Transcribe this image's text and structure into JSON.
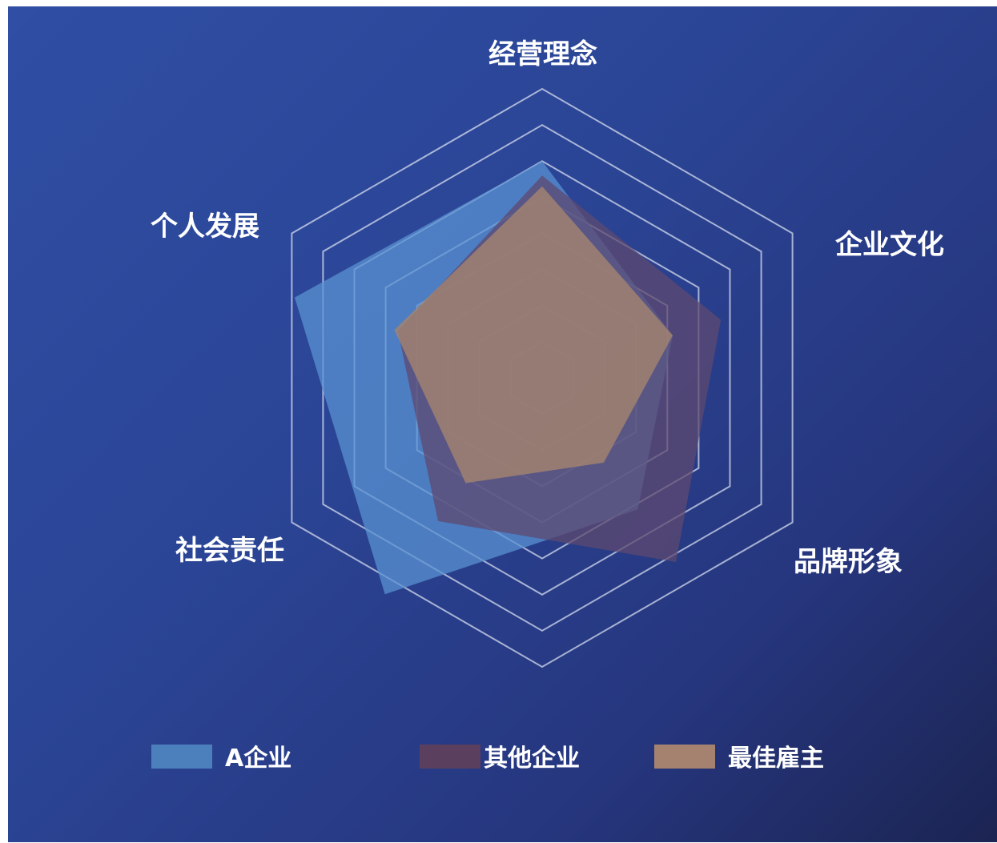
{
  "chart_data": {
    "type": "radar",
    "axes": [
      "经营理念",
      "企业文化",
      "品牌形象",
      "社会责任",
      "个人发展"
    ],
    "rmax": 8,
    "grid_levels": 8,
    "grid_shape": "hexagon",
    "grid": true,
    "legend_position": "bottom",
    "series": [
      {
        "name": "A企业",
        "values": [
          6.0,
          3.8,
          4.5,
          7.4,
          7.2
        ],
        "color": "#5a92d2",
        "opacity": 0.75
      },
      {
        "name": "其他企业",
        "values": [
          5.6,
          5.2,
          6.3,
          4.9,
          4.2
        ],
        "color": "#5e4a70",
        "opacity": 0.75
      },
      {
        "name": "最佳雇主",
        "values": [
          5.3,
          3.8,
          2.9,
          3.6,
          4.3
        ],
        "color": "#a5846f",
        "opacity": 0.8
      }
    ]
  },
  "colors": {
    "background_start": "#2f4ea4",
    "background_end": "#1b2452",
    "grid_line": "#d4dbee",
    "label_text": "#ffffff"
  }
}
